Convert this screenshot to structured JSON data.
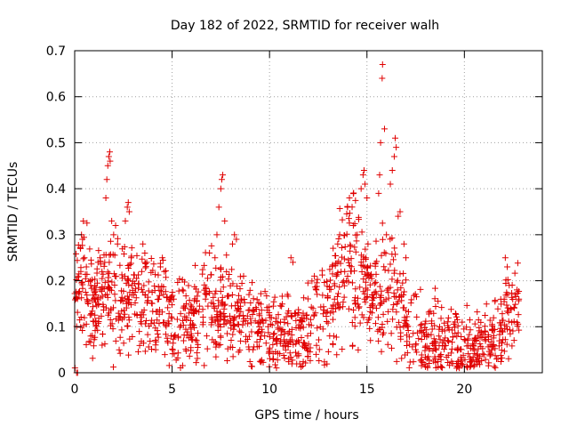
{
  "chart_data": {
    "type": "scatter",
    "title": "Day 182 of 2022, SRMTID for receiver walh",
    "xlabel": "GPS time / hours",
    "ylabel": "SRMTID / TECUs",
    "xlim": [
      0,
      24
    ],
    "ylim": [
      0,
      0.7
    ],
    "xticks": [
      0,
      5,
      10,
      15,
      20
    ],
    "xtick_labels": [
      "0",
      "5",
      "10",
      "15",
      "20"
    ],
    "yticks": [
      0,
      0.1,
      0.2,
      0.3,
      0.4,
      0.5,
      0.6,
      0.7
    ],
    "ytick_labels": [
      "0",
      "0.1",
      "0.2",
      "0.3",
      "0.4",
      "0.5",
      "0.6",
      "0.7"
    ],
    "grid": true,
    "marker": "plus",
    "color": "#e00000",
    "envelope_hours": [
      0.0,
      0.5,
      1.0,
      1.5,
      2.0,
      2.5,
      3.0,
      3.5,
      4.0,
      4.5,
      5.0,
      5.5,
      6.0,
      6.5,
      7.0,
      7.5,
      8.0,
      8.5,
      9.0,
      9.5,
      10.0,
      10.5,
      11.0,
      11.5,
      12.0,
      12.5,
      13.0,
      13.5,
      14.0,
      14.5,
      15.0,
      15.5,
      16.0,
      16.5,
      17.0,
      17.5,
      18.0,
      18.5,
      19.0,
      19.5,
      20.0,
      20.5,
      21.0,
      21.5,
      22.0,
      22.5,
      22.8
    ],
    "envelope_srmtid": [
      0.17,
      0.19,
      0.14,
      0.15,
      0.16,
      0.17,
      0.16,
      0.15,
      0.14,
      0.13,
      0.11,
      0.1,
      0.11,
      0.12,
      0.14,
      0.15,
      0.13,
      0.12,
      0.1,
      0.09,
      0.08,
      0.08,
      0.09,
      0.09,
      0.1,
      0.12,
      0.12,
      0.2,
      0.23,
      0.22,
      0.18,
      0.17,
      0.2,
      0.16,
      0.1,
      0.09,
      0.07,
      0.08,
      0.07,
      0.06,
      0.05,
      0.05,
      0.06,
      0.07,
      0.1,
      0.13,
      0.14
    ],
    "points": [
      {
        "x": 0.1,
        "y": 0.0
      },
      {
        "x": 0.15,
        "y": 0.0
      },
      {
        "x": 0.3,
        "y": 0.27
      },
      {
        "x": 0.35,
        "y": 0.3
      },
      {
        "x": 0.4,
        "y": 0.29
      },
      {
        "x": 0.5,
        "y": 0.25
      },
      {
        "x": 0.6,
        "y": 0.23
      },
      {
        "x": 0.8,
        "y": 0.2
      },
      {
        "x": 1.0,
        "y": 0.18
      },
      {
        "x": 1.2,
        "y": 0.24
      },
      {
        "x": 1.4,
        "y": 0.22
      },
      {
        "x": 1.6,
        "y": 0.38
      },
      {
        "x": 1.65,
        "y": 0.42
      },
      {
        "x": 1.7,
        "y": 0.45
      },
      {
        "x": 1.75,
        "y": 0.47
      },
      {
        "x": 1.8,
        "y": 0.48
      },
      {
        "x": 1.82,
        "y": 0.46
      },
      {
        "x": 1.9,
        "y": 0.33
      },
      {
        "x": 2.0,
        "y": 0.3
      },
      {
        "x": 2.1,
        "y": 0.32
      },
      {
        "x": 2.2,
        "y": 0.28
      },
      {
        "x": 2.6,
        "y": 0.33
      },
      {
        "x": 2.7,
        "y": 0.36
      },
      {
        "x": 2.75,
        "y": 0.37
      },
      {
        "x": 2.8,
        "y": 0.35
      },
      {
        "x": 2.9,
        "y": 0.25
      },
      {
        "x": 3.5,
        "y": 0.28
      },
      {
        "x": 3.6,
        "y": 0.26
      },
      {
        "x": 3.7,
        "y": 0.24
      },
      {
        "x": 4.4,
        "y": 0.23
      },
      {
        "x": 4.5,
        "y": 0.25
      },
      {
        "x": 4.6,
        "y": 0.22
      },
      {
        "x": 7.2,
        "y": 0.25
      },
      {
        "x": 7.3,
        "y": 0.3
      },
      {
        "x": 7.4,
        "y": 0.36
      },
      {
        "x": 7.5,
        "y": 0.4
      },
      {
        "x": 7.55,
        "y": 0.42
      },
      {
        "x": 7.6,
        "y": 0.43
      },
      {
        "x": 7.7,
        "y": 0.33
      },
      {
        "x": 8.1,
        "y": 0.28
      },
      {
        "x": 8.2,
        "y": 0.3
      },
      {
        "x": 8.3,
        "y": 0.29
      },
      {
        "x": 10.2,
        "y": 0.03
      },
      {
        "x": 10.0,
        "y": 0.05
      },
      {
        "x": 11.1,
        "y": 0.25
      },
      {
        "x": 11.2,
        "y": 0.24
      },
      {
        "x": 12.3,
        "y": 0.21
      },
      {
        "x": 12.4,
        "y": 0.18
      },
      {
        "x": 13.5,
        "y": 0.28
      },
      {
        "x": 13.6,
        "y": 0.3
      },
      {
        "x": 14.0,
        "y": 0.36
      },
      {
        "x": 14.1,
        "y": 0.38
      },
      {
        "x": 14.3,
        "y": 0.32
      },
      {
        "x": 14.5,
        "y": 0.3
      },
      {
        "x": 14.7,
        "y": 0.4
      },
      {
        "x": 14.8,
        "y": 0.43
      },
      {
        "x": 14.85,
        "y": 0.44
      },
      {
        "x": 14.9,
        "y": 0.41
      },
      {
        "x": 15.0,
        "y": 0.38
      },
      {
        "x": 15.6,
        "y": 0.39
      },
      {
        "x": 15.65,
        "y": 0.43
      },
      {
        "x": 15.7,
        "y": 0.5
      },
      {
        "x": 15.78,
        "y": 0.64
      },
      {
        "x": 15.8,
        "y": 0.67
      },
      {
        "x": 15.9,
        "y": 0.53
      },
      {
        "x": 16.0,
        "y": 0.3
      },
      {
        "x": 16.2,
        "y": 0.41
      },
      {
        "x": 16.3,
        "y": 0.44
      },
      {
        "x": 16.4,
        "y": 0.47
      },
      {
        "x": 16.45,
        "y": 0.51
      },
      {
        "x": 16.5,
        "y": 0.49
      },
      {
        "x": 16.6,
        "y": 0.34
      },
      {
        "x": 16.7,
        "y": 0.35
      },
      {
        "x": 16.9,
        "y": 0.28
      },
      {
        "x": 17.0,
        "y": 0.25
      },
      {
        "x": 17.5,
        "y": 0.05
      },
      {
        "x": 18.5,
        "y": 0.03
      },
      {
        "x": 19.4,
        "y": 0.02
      },
      {
        "x": 19.6,
        "y": 0.01
      },
      {
        "x": 19.7,
        "y": 0.02
      },
      {
        "x": 21.5,
        "y": 0.06
      },
      {
        "x": 22.1,
        "y": 0.25
      },
      {
        "x": 22.2,
        "y": 0.23
      },
      {
        "x": 22.3,
        "y": 0.19
      },
      {
        "x": 22.6,
        "y": 0.17
      },
      {
        "x": 22.7,
        "y": 0.18
      },
      {
        "x": 22.8,
        "y": 0.16
      }
    ]
  }
}
